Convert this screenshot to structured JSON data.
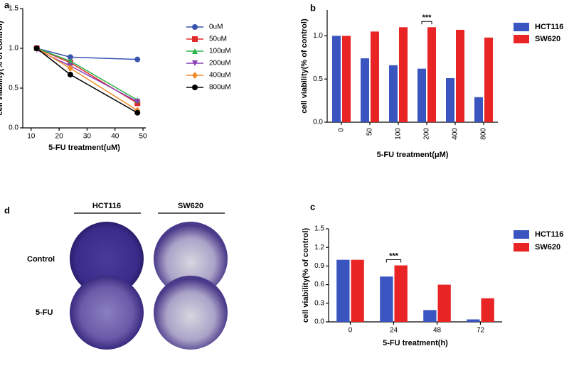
{
  "chart_data": [
    {
      "panel": "a",
      "type": "line",
      "x_label": "5-FU treatment(uM)",
      "y_label": "cell viability(% of control)",
      "x": [
        12,
        24,
        48
      ],
      "xlim": [
        7,
        51
      ],
      "xticks": [
        10,
        20,
        30,
        40,
        50
      ],
      "ylim": [
        0,
        1.5
      ],
      "yticks": [
        {
          "value": 0,
          "label": "0.0"
        },
        {
          "value": 0.5,
          "label": "0.5"
        },
        {
          "value": 1,
          "label": "1.0"
        },
        {
          "value": 1.5,
          "label": "1.5"
        }
      ],
      "series": [
        {
          "name": "0uM",
          "color": "#3a55b0",
          "values": [
            1.0,
            0.89,
            0.86
          ]
        },
        {
          "name": "50uM",
          "color": "#e02a2a",
          "values": [
            1.0,
            0.82,
            0.31
          ]
        },
        {
          "name": "100uM",
          "color": "#2db34a",
          "values": [
            1.0,
            0.84,
            0.35
          ]
        },
        {
          "name": "200uM",
          "color": "#8a3fb5",
          "values": [
            0.98,
            0.78,
            0.33
          ]
        },
        {
          "name": "400uM",
          "color": "#f28c28",
          "values": [
            1.0,
            0.75,
            0.22
          ]
        },
        {
          "name": "800uM",
          "color": "#000000",
          "values": [
            1.0,
            0.67,
            0.19
          ]
        }
      ]
    },
    {
      "panel": "b",
      "type": "bar",
      "x_label": "5-FU treatment(μM)",
      "y_label": "cell viability(% of control)",
      "categories": [
        "0",
        "50",
        "100",
        "200",
        "400",
        "800"
      ],
      "ylim": [
        0,
        1.3
      ],
      "yticks": [
        {
          "value": 0,
          "label": "0.0"
        },
        {
          "value": 0.5,
          "label": "0.5"
        },
        {
          "value": 1,
          "label": "1.0"
        }
      ],
      "annotation": "***",
      "series": [
        {
          "name": "HCT116",
          "color": "#3a55c0",
          "values": [
            1.0,
            0.74,
            0.66,
            0.62,
            0.51,
            0.29
          ]
        },
        {
          "name": "SW620",
          "color": "#e82424",
          "values": [
            1.0,
            1.05,
            1.1,
            1.1,
            1.07,
            0.98
          ]
        }
      ]
    },
    {
      "panel": "c",
      "type": "bar",
      "x_label": "5-FU treatment(h)",
      "y_label": "cell viability(% of control)",
      "categories": [
        "0",
        "24",
        "48",
        "72"
      ],
      "ylim": [
        0,
        1.5
      ],
      "yticks": [
        {
          "value": 0,
          "label": "0.0"
        },
        {
          "value": 0.3,
          "label": "0.3"
        },
        {
          "value": 0.6,
          "label": "0.6"
        },
        {
          "value": 0.9,
          "label": "0.9"
        },
        {
          "value": 1.2,
          "label": "1.2"
        },
        {
          "value": 1.5,
          "label": "1.5"
        }
      ],
      "annotation": "***",
      "series": [
        {
          "name": "HCT116",
          "color": "#3a55c0",
          "values": [
            1.0,
            0.73,
            0.19,
            0.04
          ]
        },
        {
          "name": "SW620",
          "color": "#e82424",
          "values": [
            1.0,
            0.91,
            0.6,
            0.38
          ]
        }
      ]
    }
  ],
  "image_panel": {
    "panel": "d",
    "columns": [
      "HCT116",
      "SW620"
    ],
    "rows": [
      "Control",
      "5-FU"
    ]
  }
}
